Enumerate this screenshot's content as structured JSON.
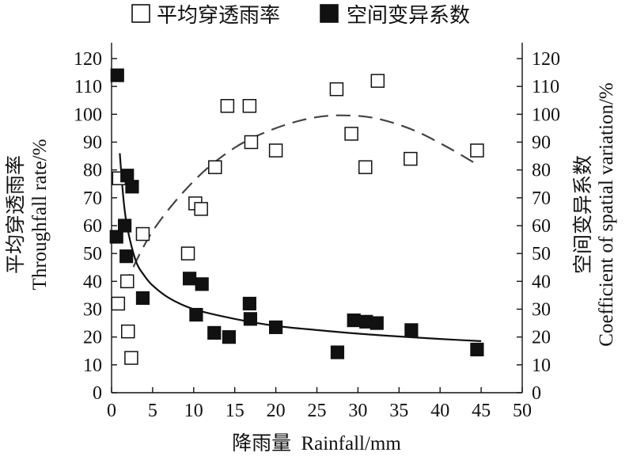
{
  "chart_data": {
    "type": "scatter",
    "x": {
      "label_cn": "降雨量",
      "label_en": "Rainfall/mm",
      "range": [
        0,
        50
      ],
      "ticks": [
        0,
        5,
        10,
        15,
        20,
        25,
        30,
        35,
        40,
        45,
        50
      ]
    },
    "y_left": {
      "label_cn": "平均穿透雨率",
      "label_en": "Throughfall rate/%",
      "range": [
        0,
        120
      ],
      "ticks": [
        0,
        10,
        20,
        30,
        40,
        50,
        60,
        70,
        80,
        90,
        100,
        110,
        120
      ]
    },
    "y_right": {
      "label_cn": "空间变异系数",
      "label_en": "Coefficient of spatial variation/%",
      "range": [
        0,
        120
      ],
      "ticks": [
        0,
        10,
        20,
        30,
        40,
        50,
        60,
        70,
        80,
        90,
        100,
        110,
        120
      ]
    },
    "legend": {
      "placement": "top",
      "entries": [
        {
          "label": "平均穿透雨率",
          "marker": "open-square"
        },
        {
          "label": "空间变异系数",
          "marker": "filled-square"
        }
      ]
    },
    "series": [
      {
        "name": "平均穿透雨率",
        "marker": "open-square",
        "fit": "dashed quadratic",
        "points": [
          [
            0.8,
            32
          ],
          [
            0.9,
            77
          ],
          [
            1.9,
            40
          ],
          [
            2.0,
            22
          ],
          [
            2.4,
            12.5
          ],
          [
            3.8,
            57
          ],
          [
            9.3,
            50
          ],
          [
            10.2,
            68
          ],
          [
            10.9,
            66
          ],
          [
            12.6,
            81
          ],
          [
            14.1,
            103
          ],
          [
            16.8,
            103
          ],
          [
            17.0,
            90
          ],
          [
            20.0,
            87
          ],
          [
            27.4,
            109
          ],
          [
            29.2,
            93
          ],
          [
            30.9,
            81
          ],
          [
            32.4,
            112
          ],
          [
            36.4,
            84
          ],
          [
            44.5,
            87
          ]
        ],
        "fit_curve": [
          [
            1.5,
            38
          ],
          [
            5,
            58
          ],
          [
            10,
            76
          ],
          [
            15,
            88
          ],
          [
            20,
            95
          ],
          [
            25,
            99
          ],
          [
            29.5,
            99.5
          ],
          [
            33,
            98
          ],
          [
            37,
            94
          ],
          [
            41,
            88
          ],
          [
            44.5,
            82
          ]
        ]
      },
      {
        "name": "空间变异系数",
        "marker": "filled-square",
        "fit": "solid power",
        "points": [
          [
            0.7,
            114
          ],
          [
            0.6,
            56
          ],
          [
            1.9,
            78
          ],
          [
            2.5,
            74
          ],
          [
            1.6,
            60
          ],
          [
            1.8,
            49
          ],
          [
            3.8,
            34
          ],
          [
            9.5,
            41
          ],
          [
            10.3,
            28
          ],
          [
            11.0,
            39
          ],
          [
            12.5,
            21.5
          ],
          [
            14.3,
            20
          ],
          [
            16.8,
            32
          ],
          [
            16.9,
            26.5
          ],
          [
            20.0,
            23.5
          ],
          [
            27.5,
            14.5
          ],
          [
            29.5,
            26
          ],
          [
            31.0,
            25.5
          ],
          [
            32.3,
            25
          ],
          [
            36.5,
            22.5
          ],
          [
            44.5,
            15.5
          ]
        ],
        "fit_curve": [
          [
            1.0,
            86
          ],
          [
            1.5,
            68
          ],
          [
            2.0,
            58
          ],
          [
            3.0,
            47
          ],
          [
            4.0,
            42
          ],
          [
            5.0,
            38.5
          ],
          [
            7.0,
            34
          ],
          [
            10,
            30
          ],
          [
            15,
            26.5
          ],
          [
            20,
            24
          ],
          [
            25,
            22.5
          ],
          [
            30,
            21.2
          ],
          [
            35,
            20.2
          ],
          [
            40,
            19.3
          ],
          [
            45,
            18.5
          ]
        ]
      }
    ]
  }
}
